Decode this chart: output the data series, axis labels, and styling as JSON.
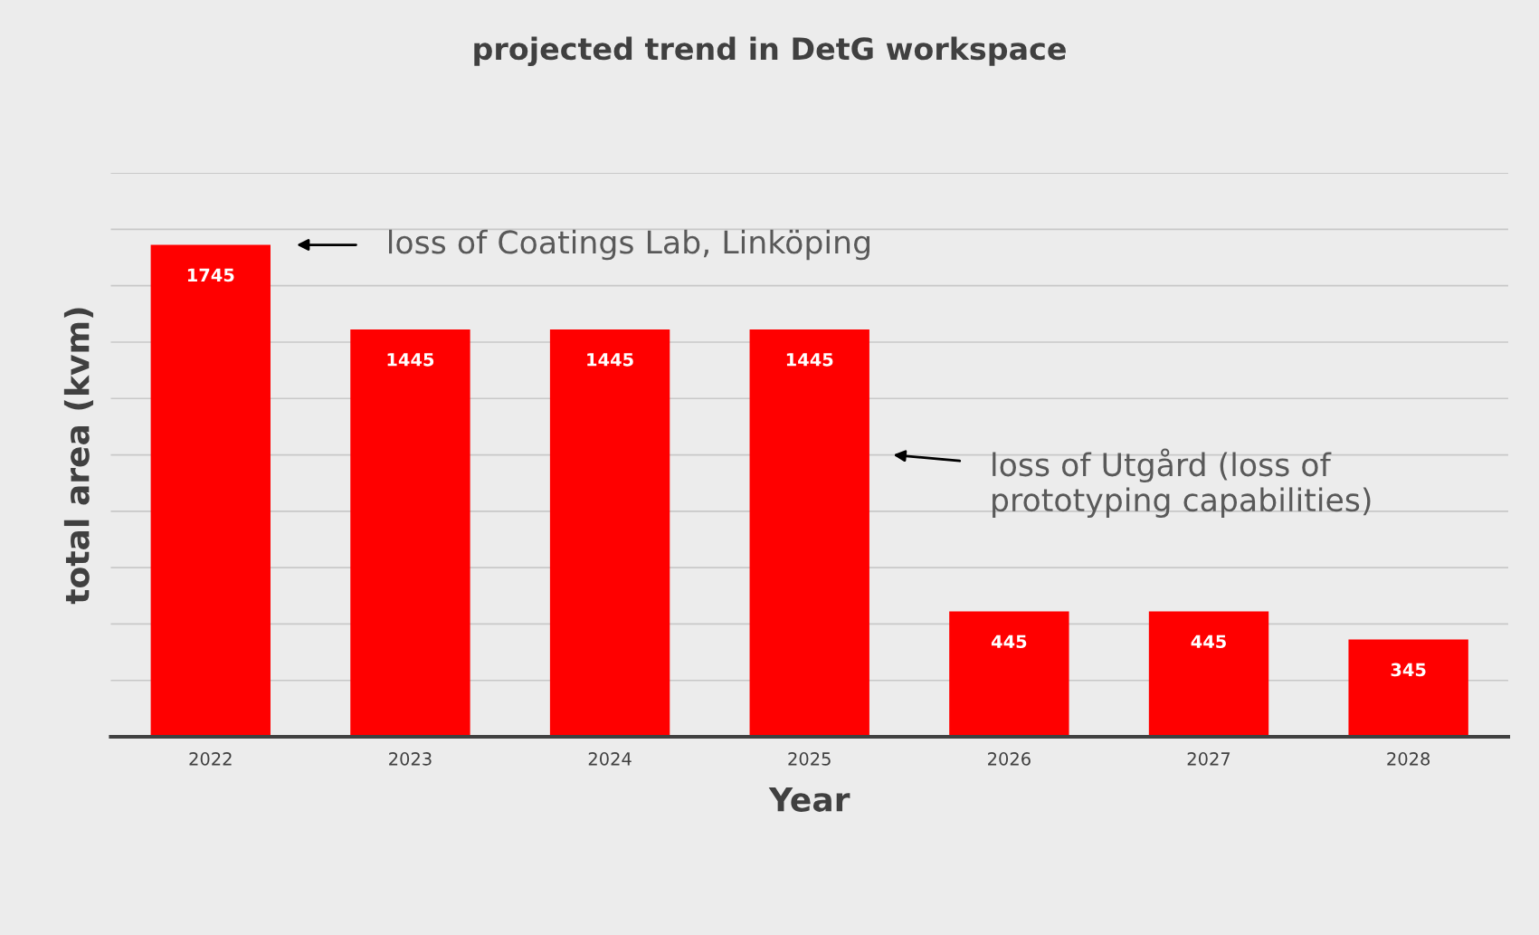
{
  "chart_data": {
    "type": "bar",
    "title": "projected trend in DetG workspace",
    "xlabel": "Year",
    "ylabel": "total area (kvm)",
    "categories": [
      "2022",
      "2023",
      "2024",
      "2025",
      "2026",
      "2027",
      "2028"
    ],
    "values": [
      1745,
      1445,
      1445,
      1445,
      445,
      445,
      345
    ],
    "color": "#ff0000",
    "data_labels": true,
    "ylim": [
      0,
      2000
    ],
    "yticks": [
      {
        "value": 200,
        "label": null
      },
      {
        "value": 400,
        "label": null
      },
      {
        "value": 600,
        "label": null
      },
      {
        "value": 800,
        "label": null
      },
      {
        "value": 1000,
        "label": null
      },
      {
        "value": 1200,
        "label": null
      },
      {
        "value": 1400,
        "label": null
      },
      {
        "value": 1600,
        "label": null
      },
      {
        "value": 1800,
        "label": null
      },
      {
        "value": 2000,
        "label": null
      }
    ],
    "tick_labels": "x",
    "grid": "y",
    "annotations": [
      "loss of Coatings Lab, Linköping",
      "loss of Utgård (loss of\nprototyping capabilities)"
    ]
  }
}
